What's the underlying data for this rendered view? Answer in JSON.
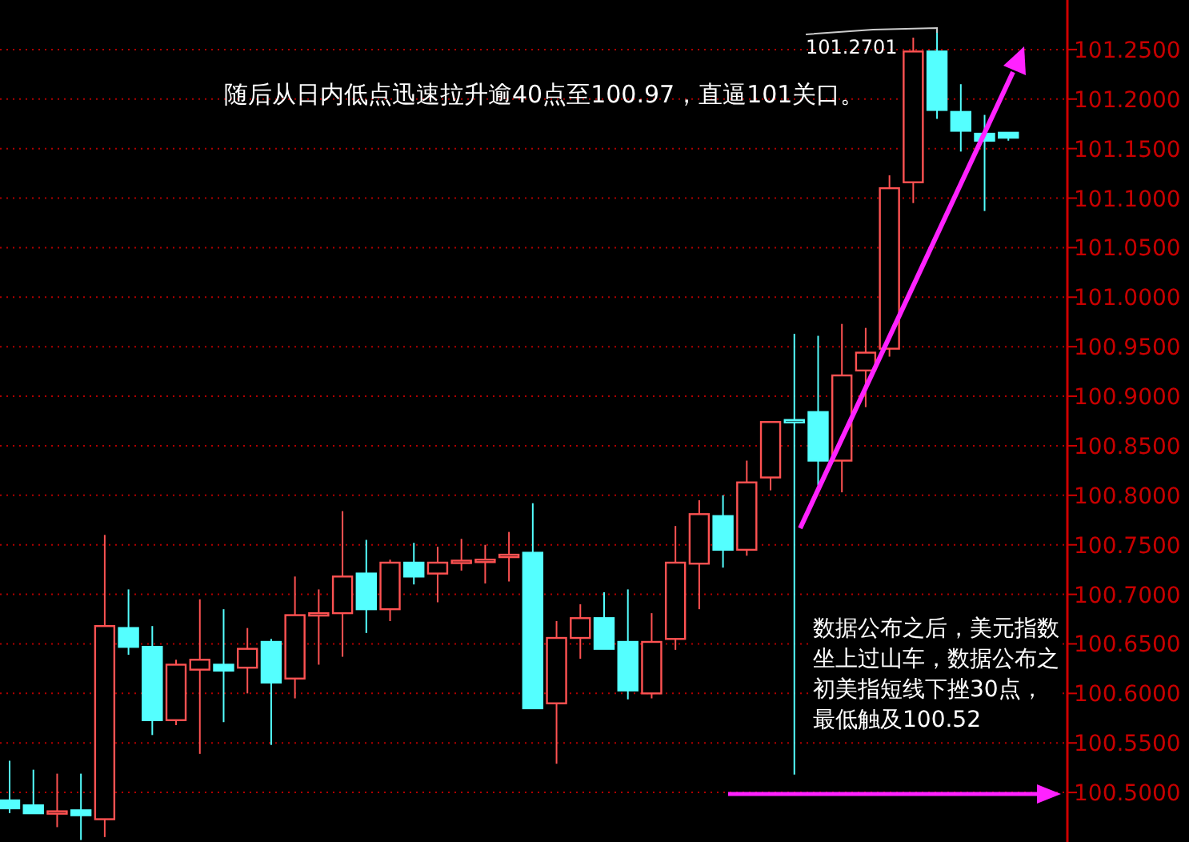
{
  "chart_data": {
    "type": "candlestick",
    "categories": [
      null,
      null,
      null,
      null,
      null,
      null,
      null,
      null,
      null,
      null,
      null,
      null,
      null,
      null,
      null,
      null,
      null,
      null,
      null,
      null,
      null,
      null,
      null,
      null,
      null,
      null,
      null,
      null,
      null,
      null,
      null,
      null,
      null,
      null,
      null,
      null,
      null,
      null,
      null,
      null,
      null,
      null,
      null
    ],
    "ohlc": [
      [
        100.492,
        100.532,
        100.479,
        100.484
      ],
      [
        100.487,
        100.523,
        100.479,
        100.479
      ],
      [
        100.481,
        100.519,
        100.465,
        100.481
      ],
      [
        100.482,
        100.519,
        100.452,
        100.477
      ],
      [
        100.473,
        100.76,
        100.455,
        100.668
      ],
      [
        100.666,
        100.705,
        100.639,
        100.647
      ],
      [
        100.647,
        100.668,
        100.558,
        100.573
      ],
      [
        100.573,
        100.634,
        100.568,
        100.629
      ],
      [
        100.624,
        100.695,
        100.539,
        100.634
      ],
      [
        100.629,
        100.685,
        100.571,
        100.623
      ],
      [
        100.626,
        100.666,
        100.6,
        100.645
      ],
      [
        100.652,
        100.655,
        100.548,
        100.611
      ],
      [
        100.615,
        100.718,
        100.595,
        100.679
      ],
      [
        100.681,
        100.705,
        100.629,
        100.681
      ],
      [
        100.681,
        100.784,
        100.637,
        100.718
      ],
      [
        100.721,
        100.755,
        100.661,
        100.685
      ],
      [
        100.685,
        100.735,
        100.673,
        100.732
      ],
      [
        100.732,
        100.752,
        100.71,
        100.718
      ],
      [
        100.721,
        100.748,
        100.692,
        100.732
      ],
      [
        100.734,
        100.756,
        100.724,
        100.734
      ],
      [
        100.735,
        100.75,
        100.711,
        100.735
      ],
      [
        100.74,
        100.763,
        100.713,
        100.74
      ],
      [
        100.742,
        100.792,
        100.585,
        100.585
      ],
      [
        100.59,
        100.673,
        100.529,
        100.656
      ],
      [
        100.656,
        100.69,
        100.635,
        100.676
      ],
      [
        100.676,
        100.702,
        100.645,
        100.645
      ],
      [
        100.652,
        100.705,
        100.594,
        100.603
      ],
      [
        100.6,
        100.681,
        100.595,
        100.652
      ],
      [
        100.655,
        100.769,
        100.644,
        100.732
      ],
      [
        100.731,
        100.795,
        100.685,
        100.781
      ],
      [
        100.779,
        100.8,
        100.727,
        100.745
      ],
      [
        100.745,
        100.835,
        100.739,
        100.813
      ],
      [
        100.818,
        100.874,
        100.805,
        100.874
      ],
      [
        100.876,
        100.963,
        100.518,
        100.876
      ],
      [
        100.884,
        100.961,
        100.81,
        100.835
      ],
      [
        100.835,
        100.973,
        100.803,
        100.921
      ],
      [
        100.926,
        100.969,
        100.889,
        100.944
      ],
      [
        100.948,
        101.123,
        100.94,
        101.11
      ],
      [
        101.116,
        101.262,
        101.095,
        101.248
      ],
      [
        101.248,
        101.2701,
        101.18,
        101.189
      ],
      [
        101.187,
        101.215,
        101.147,
        101.168
      ],
      [
        101.165,
        101.184,
        101.087,
        101.158
      ],
      [
        101.166,
        101.166,
        101.158,
        101.161
      ]
    ],
    "colors": [
      "#54ffff",
      "#54ffff",
      "#ff5252",
      "#54ffff",
      "#ff5252",
      "#54ffff",
      "#54ffff",
      "#ff5252",
      "#ff5252",
      "#54ffff",
      "#ff5252",
      "#54ffff",
      "#ff5252",
      "#ff5252",
      "#ff5252",
      "#54ffff",
      "#ff5252",
      "#54ffff",
      "#ff5252",
      "#ff5252",
      "#ff5252",
      "#ff5252",
      "#54ffff",
      "#ff5252",
      "#ff5252",
      "#54ffff",
      "#54ffff",
      "#ff5252",
      "#ff5252",
      "#ff5252",
      "#54ffff",
      "#ff5252",
      "#ff5252",
      "#54ffff",
      "#54ffff",
      "#ff5252",
      "#ff5252",
      "#ff5252",
      "#ff5252",
      "#54ffff",
      "#54ffff",
      "#54ffff",
      "#54ffff"
    ],
    "ylim": [
      100.45,
      101.3
    ],
    "yticks": [
      {
        "value": 100.5,
        "label": "100.5000"
      },
      {
        "value": 100.55,
        "label": "100.5500"
      },
      {
        "value": 100.6,
        "label": "100.6000"
      },
      {
        "value": 100.65,
        "label": "100.6500"
      },
      {
        "value": 100.7,
        "label": "100.7000"
      },
      {
        "value": 100.75,
        "label": "100.7500"
      },
      {
        "value": 100.8,
        "label": "100.8000"
      },
      {
        "value": 100.85,
        "label": "100.8500"
      },
      {
        "value": 100.9,
        "label": "100.9000"
      },
      {
        "value": 100.95,
        "label": "100.9500"
      },
      {
        "value": 101.0,
        "label": "101.0000"
      },
      {
        "value": 101.05,
        "label": "101.0500"
      },
      {
        "value": 101.1,
        "label": "101.1000"
      },
      {
        "value": 101.15,
        "label": "101.1500"
      },
      {
        "value": 101.2,
        "label": "101.2000"
      },
      {
        "value": 101.25,
        "label": "101.2500"
      }
    ],
    "grid": "y",
    "annotations": [
      "随后从日内低点迅速拉升逾40点至100.97，直逼101关口。",
      "101.2701",
      "数据公布之后，美元指数坐上过山车，数据公布之初美指短线下挫30点，最低触及100.52"
    ]
  }
}
